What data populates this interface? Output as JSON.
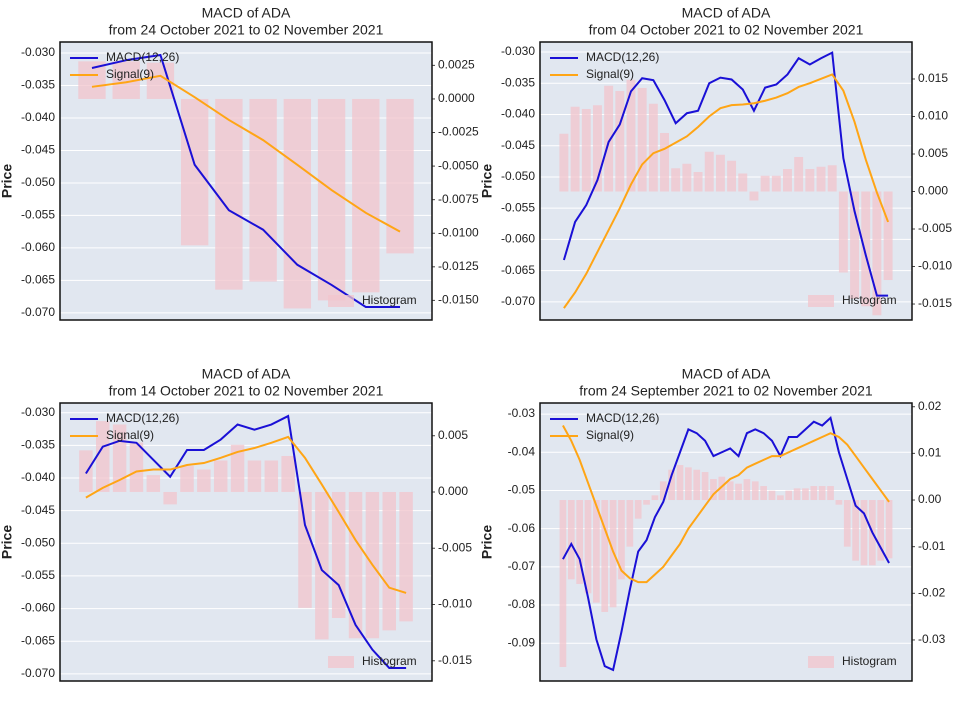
{
  "chart_data": [
    {
      "type": "combo",
      "title": "MACD of ADA",
      "subtitle": "from 24 October 2021 to 02 November 2021",
      "ylabel": "Price",
      "ylim": [
        -0.0711,
        -0.0283
      ],
      "yticks": [
        {
          "value": -0.03,
          "label": "-0.030"
        },
        -0.035,
        {
          "value": -0.04,
          "label": "-0.040"
        },
        -0.045,
        {
          "value": -0.05,
          "label": "-0.050"
        },
        -0.055,
        {
          "value": -0.06,
          "label": "-0.060"
        },
        -0.065,
        {
          "value": -0.07,
          "label": "-0.070"
        }
      ],
      "y2lim": [
        -0.01646,
        0.00424
      ],
      "y2ticks": [
        0.0025,
        {
          "value": 0,
          "label": "0.0000"
        },
        -0.0025,
        {
          "value": -0.005,
          "label": "-0.0050"
        },
        -0.0075,
        {
          "value": -0.01,
          "label": "-0.0100"
        },
        -0.0125,
        {
          "value": -0.015,
          "label": "-0.0150"
        }
      ],
      "grid": true,
      "series": [
        {
          "name": "MACD(12,26)",
          "type": "line",
          "color": "#1a10d6",
          "legend": "upper left",
          "values": [
            -0.0323,
            -0.0311,
            -0.0303,
            -0.0472,
            -0.0542,
            -0.0572,
            -0.0626,
            -0.0657,
            -0.0691,
            -0.0691
          ]
        },
        {
          "name": "Signal(9)",
          "type": "line",
          "color": "#ffa515",
          "legend": "upper left",
          "values": [
            -0.0352,
            -0.0345,
            -0.0335,
            -0.0368,
            -0.0403,
            -0.0434,
            -0.0472,
            -0.0511,
            -0.0546,
            -0.0575
          ]
        },
        {
          "name": "Histogram",
          "type": "bar",
          "axis": "y2",
          "color": "#f2c4cc",
          "legend": "lower right",
          "values": [
            0.0028,
            0.0028,
            0.0027,
            -0.0109,
            -0.0142,
            -0.0136,
            -0.0156,
            -0.015,
            -0.0144,
            -0.0115
          ]
        }
      ]
    },
    {
      "type": "combo",
      "title": "MACD of ADA",
      "subtitle": "from 04 October 2021 to 02 November 2021",
      "ylabel": "Price",
      "ylim": [
        -0.0729,
        -0.0284
      ],
      "yticks": [
        {
          "value": -0.03,
          "label": "-0.030"
        },
        -0.035,
        {
          "value": -0.04,
          "label": "-0.040"
        },
        -0.045,
        {
          "value": -0.05,
          "label": "-0.050"
        },
        -0.055,
        {
          "value": -0.06,
          "label": "-0.060"
        },
        -0.065,
        {
          "value": -0.07,
          "label": "-0.070"
        }
      ],
      "y2lim": [
        -0.01713,
        0.01993
      ],
      "y2ticks": [
        0.015,
        {
          "value": 0.01,
          "label": "0.010"
        },
        0.005,
        {
          "value": 0,
          "label": "0.000"
        },
        -0.005,
        {
          "value": -0.01,
          "label": "-0.010"
        },
        -0.015
      ],
      "grid": true,
      "series": [
        {
          "name": "MACD(12,26)",
          "type": "line",
          "color": "#1a10d6",
          "legend": "upper left",
          "values": [
            -0.0633,
            -0.0572,
            -0.0545,
            -0.0505,
            -0.0444,
            -0.0416,
            -0.0363,
            -0.0342,
            -0.0345,
            -0.0377,
            -0.0414,
            -0.0398,
            -0.0394,
            -0.035,
            -0.0341,
            -0.0344,
            -0.036,
            -0.0394,
            -0.0357,
            -0.0352,
            -0.0336,
            -0.031,
            -0.032,
            -0.031,
            -0.0301,
            -0.047,
            -0.0555,
            -0.0625,
            -0.069,
            -0.069
          ]
        },
        {
          "name": "Signal(9)",
          "type": "line",
          "color": "#ffa515",
          "legend": "upper left",
          "values": [
            -0.071,
            -0.0685,
            -0.0655,
            -0.062,
            -0.0585,
            -0.055,
            -0.0512,
            -0.048,
            -0.0462,
            -0.0455,
            -0.0445,
            -0.0435,
            -0.042,
            -0.0403,
            -0.039,
            -0.0385,
            -0.0384,
            -0.0382,
            -0.0378,
            -0.0373,
            -0.0366,
            -0.0356,
            -0.035,
            -0.0343,
            -0.0336,
            -0.0362,
            -0.0412,
            -0.0472,
            -0.0525,
            -0.0572
          ]
        },
        {
          "name": "Histogram",
          "type": "bar",
          "axis": "y2",
          "color": "#f2c4cc",
          "legend": "lower right",
          "values": [
            0.0077,
            0.0113,
            0.011,
            0.0115,
            0.0141,
            0.0134,
            0.0149,
            0.0138,
            0.0117,
            0.0078,
            0.0031,
            0.0037,
            0.0026,
            0.0053,
            0.0049,
            0.0041,
            0.0024,
            -0.0012,
            0.0021,
            0.0021,
            0.003,
            0.0046,
            0.003,
            0.0033,
            0.0035,
            -0.0108,
            -0.0143,
            -0.0153,
            -0.0165,
            -0.0118
          ]
        }
      ]
    },
    {
      "type": "combo",
      "title": "MACD of ADA",
      "subtitle": "from 14 October 2021 to 02 November 2021",
      "ylabel": "Price",
      "ylim": [
        -0.0711,
        -0.0285
      ],
      "yticks": [
        {
          "value": -0.03,
          "label": "-0.030"
        },
        -0.035,
        {
          "value": -0.04,
          "label": "-0.040"
        },
        -0.045,
        {
          "value": -0.05,
          "label": "-0.050"
        },
        -0.055,
        {
          "value": -0.06,
          "label": "-0.060"
        },
        -0.065,
        {
          "value": -0.07,
          "label": "-0.070"
        }
      ],
      "y2lim": [
        -0.0168,
        0.00791
      ],
      "y2ticks": [
        0.005,
        {
          "value": 0,
          "label": "0.000"
        },
        -0.005,
        {
          "value": -0.01,
          "label": "-0.010"
        },
        -0.015
      ],
      "grid": true,
      "series": [
        {
          "name": "MACD(12,26)",
          "type": "line",
          "color": "#1a10d6",
          "legend": "upper left",
          "values": [
            -0.0393,
            -0.0352,
            -0.0343,
            -0.0346,
            -0.0372,
            -0.0398,
            -0.0357,
            -0.0357,
            -0.0341,
            -0.0318,
            -0.0326,
            -0.0318,
            -0.0305,
            -0.0472,
            -0.0541,
            -0.0564,
            -0.0625,
            -0.0663,
            -0.0691,
            -0.0691
          ]
        },
        {
          "name": "Signal(9)",
          "type": "line",
          "color": "#ffa515",
          "legend": "upper left",
          "values": [
            -0.043,
            -0.0415,
            -0.0403,
            -0.039,
            -0.0387,
            -0.0387,
            -0.038,
            -0.0377,
            -0.0369,
            -0.036,
            -0.0354,
            -0.0346,
            -0.0337,
            -0.0369,
            -0.041,
            -0.0452,
            -0.0495,
            -0.0533,
            -0.0568,
            -0.0576
          ]
        },
        {
          "name": "Histogram",
          "type": "bar",
          "axis": "y2",
          "color": "#f2c4cc",
          "legend": "lower right",
          "values": [
            0.0037,
            0.0063,
            0.006,
            0.0044,
            0.0015,
            -0.0011,
            0.0023,
            0.002,
            0.0028,
            0.0042,
            0.0028,
            0.0028,
            0.0032,
            -0.0103,
            -0.0131,
            -0.0112,
            -0.013,
            -0.013,
            -0.0123,
            -0.0115
          ]
        }
      ]
    },
    {
      "type": "combo",
      "title": "MACD of ADA",
      "subtitle": "from 24 September 2021 to 02 November 2021",
      "ylabel": "Price",
      "ylim": [
        -0.0999,
        -0.0271
      ],
      "yticks": [
        -0.03,
        -0.04,
        -0.05,
        -0.06,
        -0.07,
        -0.08,
        -0.09
      ],
      "y2lim": [
        -0.0388,
        0.0208
      ],
      "y2ticks": [
        0.02,
        0.01,
        {
          "value": 0,
          "label": "0.00"
        },
        -0.01,
        -0.02,
        -0.03
      ],
      "grid": true,
      "series": [
        {
          "name": "MACD(12,26)",
          "type": "line",
          "color": "#1a10d6",
          "legend": "upper left",
          "values": [
            -0.068,
            -0.064,
            -0.068,
            -0.078,
            -0.089,
            -0.096,
            -0.097,
            -0.087,
            -0.076,
            -0.066,
            -0.063,
            -0.057,
            -0.053,
            -0.046,
            -0.04,
            -0.034,
            -0.035,
            -0.037,
            -0.041,
            -0.04,
            -0.039,
            -0.041,
            -0.035,
            -0.034,
            -0.035,
            -0.037,
            -0.041,
            -0.036,
            -0.036,
            -0.034,
            -0.032,
            -0.033,
            -0.031,
            -0.04,
            -0.047,
            -0.054,
            -0.056,
            -0.061,
            -0.065,
            -0.069
          ]
        },
        {
          "name": "Signal(9)",
          "type": "line",
          "color": "#ffa515",
          "legend": "upper left",
          "values": [
            -0.033,
            -0.037,
            -0.042,
            -0.048,
            -0.054,
            -0.06,
            -0.066,
            -0.071,
            -0.073,
            -0.074,
            -0.074,
            -0.072,
            -0.07,
            -0.067,
            -0.064,
            -0.06,
            -0.057,
            -0.054,
            -0.051,
            -0.049,
            -0.047,
            -0.046,
            -0.044,
            -0.043,
            -0.042,
            -0.041,
            -0.041,
            -0.04,
            -0.039,
            -0.038,
            -0.037,
            -0.036,
            -0.035,
            -0.036,
            -0.038,
            -0.041,
            -0.044,
            -0.047,
            -0.05,
            -0.053
          ]
        },
        {
          "name": "Histogram",
          "type": "bar",
          "axis": "y2",
          "color": "#f2c4cc",
          "legend": "lower right",
          "values": [
            -0.0358,
            -0.017,
            -0.018,
            -0.02,
            -0.022,
            -0.024,
            -0.023,
            -0.017,
            -0.01,
            -0.004,
            -0.001,
            0.001,
            0.004,
            0.0065,
            0.0075,
            0.007,
            0.0065,
            0.006,
            0.0045,
            0.005,
            0.004,
            0.0035,
            0.0045,
            0.004,
            0.003,
            0.002,
            0.001,
            0.002,
            0.0025,
            0.0025,
            0.003,
            0.003,
            0.003,
            -0.001,
            -0.01,
            -0.013,
            -0.014,
            -0.014,
            -0.013,
            -0.0125
          ]
        }
      ]
    }
  ]
}
